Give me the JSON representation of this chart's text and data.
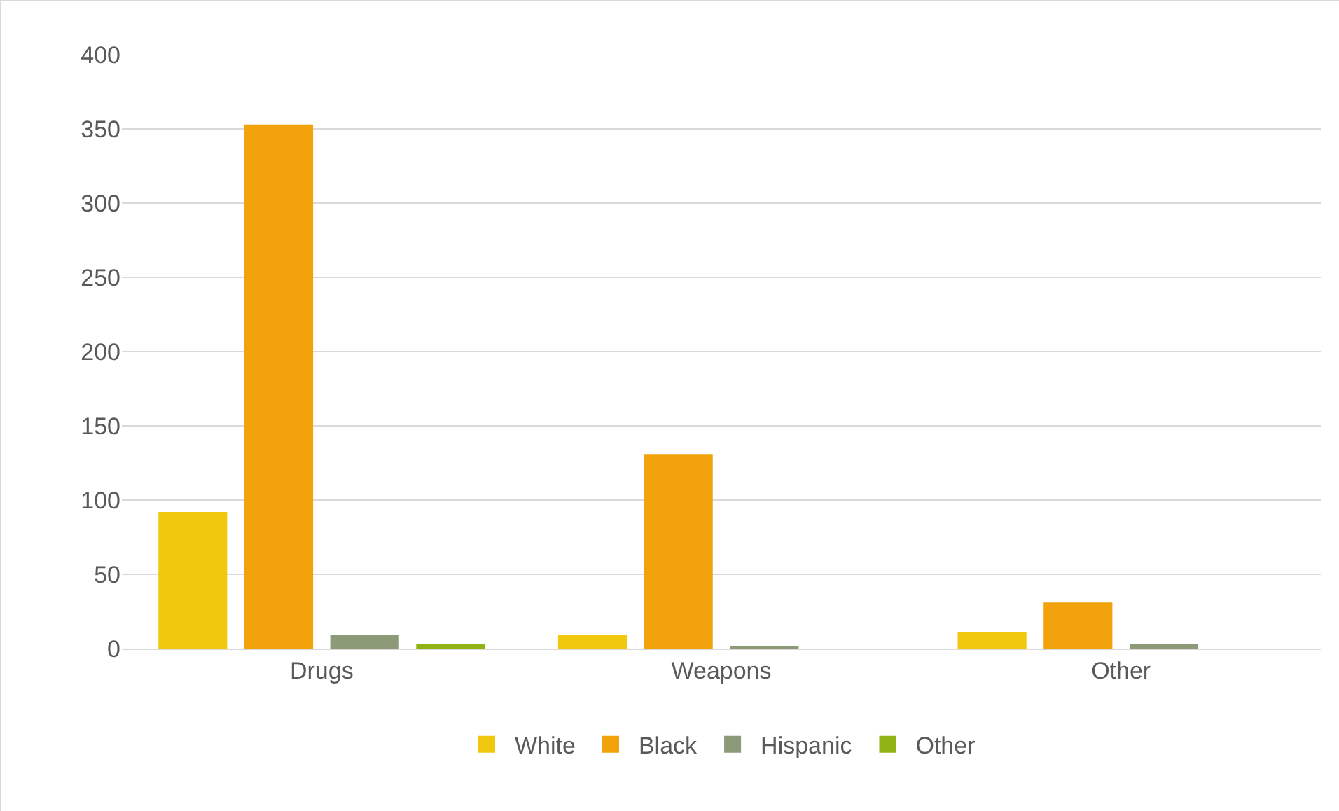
{
  "chart_data": {
    "type": "bar",
    "categories": [
      "Drugs",
      "Weapons",
      "Other"
    ],
    "series": [
      {
        "name": "White",
        "color": "#f2c80f",
        "values": [
          92,
          9,
          11
        ]
      },
      {
        "name": "Black",
        "color": "#f2a20a",
        "values": [
          353,
          131,
          31
        ]
      },
      {
        "name": "Hispanic",
        "color": "#8c9a78",
        "values": [
          9,
          1,
          3
        ]
      },
      {
        "name": "Other",
        "color": "#8fb315",
        "values": [
          3,
          0,
          0
        ]
      }
    ],
    "ylim": [
      0,
      400
    ],
    "yticks": [
      0,
      50,
      100,
      150,
      200,
      250,
      300,
      350,
      400
    ],
    "grid": "y",
    "legend": "bottom"
  }
}
